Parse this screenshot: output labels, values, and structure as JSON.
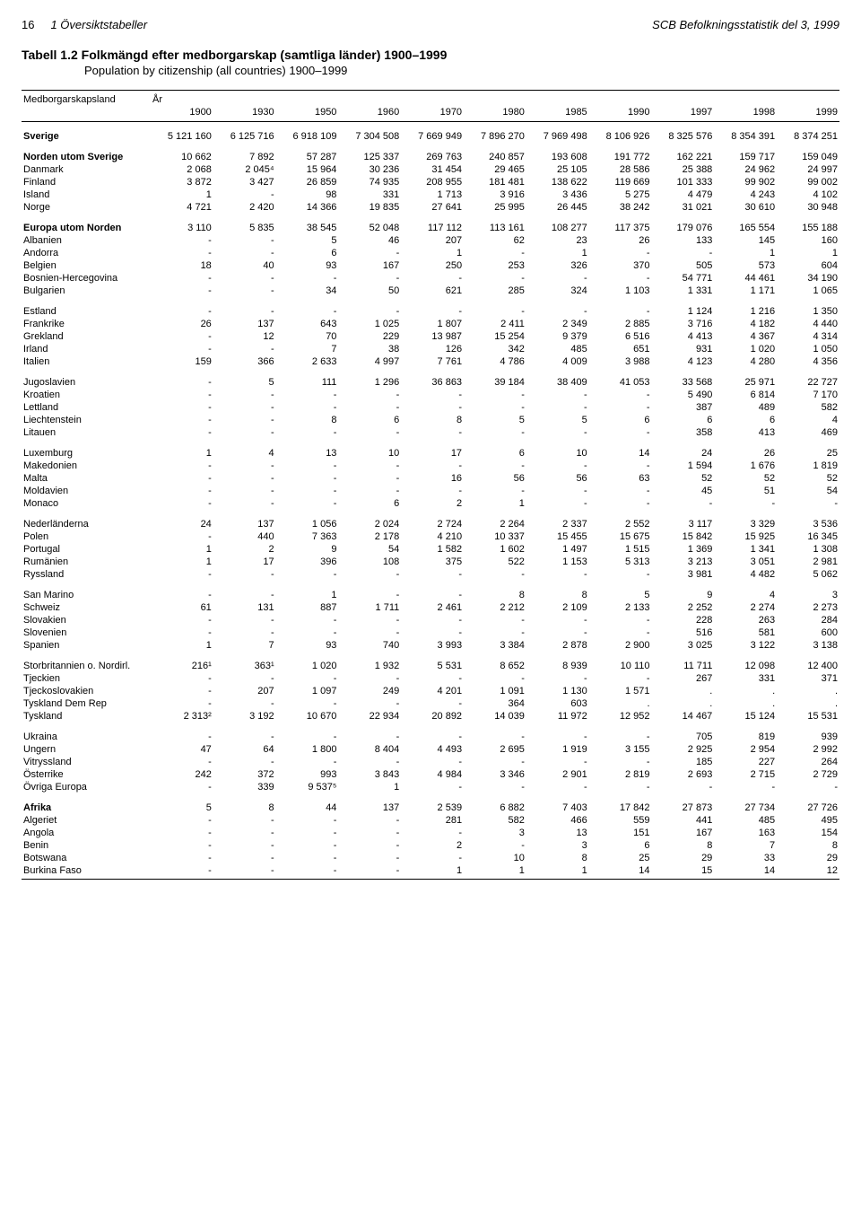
{
  "header": {
    "page_number": "16",
    "section": "1 Översiktstabeller",
    "publication": "SCB Befolkningsstatistik del 3, 1999"
  },
  "title": {
    "label": "Tabell 1.2",
    "sv": "Folkmängd efter medborgarskap (samtliga länder) 1900–1999",
    "en": "Population by citizenship (all countries) 1900–1999"
  },
  "table": {
    "row_header": "Medborgarskapsland",
    "year_label": "År",
    "years": [
      "1900",
      "1930",
      "1950",
      "1960",
      "1970",
      "1980",
      "1985",
      "1990",
      "1997",
      "1998",
      "1999"
    ],
    "rows": [
      {
        "label": "Sverige",
        "bold": true,
        "gap": true,
        "vals": [
          "5 121 160",
          "6 125 716",
          "6 918 109",
          "7 304 508",
          "7 669 949",
          "7 896 270",
          "7 969 498",
          "8 106 926",
          "8 325 576",
          "8 354 391",
          "8 374 251"
        ]
      },
      {
        "label": "Norden utom Sverige",
        "bold": true,
        "gap": true,
        "vals": [
          "10 662",
          "7 892",
          "57 287",
          "125 337",
          "269 763",
          "240 857",
          "193 608",
          "191 772",
          "162 221",
          "159 717",
          "159 049"
        ]
      },
      {
        "label": "Danmark",
        "vals": [
          "2 068",
          "2 045⁴",
          "15 964",
          "30 236",
          "31 454",
          "29 465",
          "25 105",
          "28 586",
          "25 388",
          "24 962",
          "24 997"
        ]
      },
      {
        "label": "Finland",
        "vals": [
          "3 872",
          "3 427",
          "26 859",
          "74 935",
          "208 955",
          "181 481",
          "138 622",
          "119 669",
          "101 333",
          "99 902",
          "99 002"
        ]
      },
      {
        "label": "Island",
        "vals": [
          "1",
          "-",
          "98",
          "331",
          "1 713",
          "3 916",
          "3 436",
          "5 275",
          "4 479",
          "4 243",
          "4 102"
        ]
      },
      {
        "label": "Norge",
        "vals": [
          "4 721",
          "2 420",
          "14 366",
          "19 835",
          "27 641",
          "25 995",
          "26 445",
          "38 242",
          "31 021",
          "30 610",
          "30 948"
        ]
      },
      {
        "label": "Europa utom Norden",
        "bold": true,
        "gap": true,
        "vals": [
          "3 110",
          "5 835",
          "38 545",
          "52 048",
          "117 112",
          "113 161",
          "108 277",
          "117 375",
          "179 076",
          "165 554",
          "155 188"
        ]
      },
      {
        "label": "Albanien",
        "vals": [
          "-",
          "-",
          "5",
          "46",
          "207",
          "62",
          "23",
          "26",
          "133",
          "145",
          "160"
        ]
      },
      {
        "label": "Andorra",
        "vals": [
          "-",
          "-",
          "6",
          "-",
          "1",
          "-",
          "1",
          "-",
          "-",
          "1",
          "1"
        ]
      },
      {
        "label": "Belgien",
        "vals": [
          "18",
          "40",
          "93",
          "167",
          "250",
          "253",
          "326",
          "370",
          "505",
          "573",
          "604"
        ]
      },
      {
        "label": "Bosnien-Hercegovina",
        "vals": [
          "-",
          "-",
          "-",
          "-",
          "-",
          "-",
          "-",
          "-",
          "54 771",
          "44 461",
          "34 190"
        ]
      },
      {
        "label": "Bulgarien",
        "vals": [
          "-",
          "-",
          "34",
          "50",
          "621",
          "285",
          "324",
          "1 103",
          "1 331",
          "1 171",
          "1 065"
        ]
      },
      {
        "label": "Estland",
        "gap": true,
        "vals": [
          "-",
          "-",
          "-",
          "-",
          "-",
          "-",
          "-",
          "-",
          "1 124",
          "1 216",
          "1 350"
        ]
      },
      {
        "label": "Frankrike",
        "vals": [
          "26",
          "137",
          "643",
          "1 025",
          "1 807",
          "2 411",
          "2 349",
          "2 885",
          "3 716",
          "4 182",
          "4 440"
        ]
      },
      {
        "label": "Grekland",
        "vals": [
          "-",
          "12",
          "70",
          "229",
          "13 987",
          "15 254",
          "9 379",
          "6 516",
          "4 413",
          "4 367",
          "4 314"
        ]
      },
      {
        "label": "Irland",
        "vals": [
          "-",
          "-",
          "7",
          "38",
          "126",
          "342",
          "485",
          "651",
          "931",
          "1 020",
          "1 050"
        ]
      },
      {
        "label": "Italien",
        "vals": [
          "159",
          "366",
          "2 633",
          "4 997",
          "7 761",
          "4 786",
          "4 009",
          "3 988",
          "4 123",
          "4 280",
          "4 356"
        ]
      },
      {
        "label": "Jugoslavien",
        "gap": true,
        "vals": [
          "-",
          "5",
          "111",
          "1 296",
          "36 863",
          "39 184",
          "38 409",
          "41 053",
          "33 568",
          "25 971",
          "22 727"
        ]
      },
      {
        "label": "Kroatien",
        "vals": [
          "-",
          "-",
          "-",
          "-",
          "-",
          "-",
          "-",
          "-",
          "5 490",
          "6 814",
          "7 170"
        ]
      },
      {
        "label": "Lettland",
        "vals": [
          "-",
          "-",
          "-",
          "-",
          "-",
          "-",
          "-",
          "-",
          "387",
          "489",
          "582"
        ]
      },
      {
        "label": "Liechtenstein",
        "vals": [
          "-",
          "-",
          "8",
          "6",
          "8",
          "5",
          "5",
          "6",
          "6",
          "6",
          "4"
        ]
      },
      {
        "label": "Litauen",
        "vals": [
          "-",
          "-",
          "-",
          "-",
          "-",
          "-",
          "-",
          "-",
          "358",
          "413",
          "469"
        ]
      },
      {
        "label": "Luxemburg",
        "gap": true,
        "vals": [
          "1",
          "4",
          "13",
          "10",
          "17",
          "6",
          "10",
          "14",
          "24",
          "26",
          "25"
        ]
      },
      {
        "label": "Makedonien",
        "vals": [
          "-",
          "-",
          "-",
          "-",
          "-",
          "-",
          "-",
          "-",
          "1 594",
          "1 676",
          "1 819"
        ]
      },
      {
        "label": "Malta",
        "vals": [
          "-",
          "-",
          "-",
          "-",
          "16",
          "56",
          "56",
          "63",
          "52",
          "52",
          "52"
        ]
      },
      {
        "label": "Moldavien",
        "vals": [
          "-",
          "-",
          "-",
          "-",
          "-",
          "-",
          "-",
          "-",
          "45",
          "51",
          "54"
        ]
      },
      {
        "label": "Monaco",
        "vals": [
          "-",
          "-",
          "-",
          "6",
          "2",
          "1",
          "-",
          "-",
          "-",
          "-",
          "-"
        ]
      },
      {
        "label": "Nederländerna",
        "gap": true,
        "vals": [
          "24",
          "137",
          "1 056",
          "2 024",
          "2 724",
          "2 264",
          "2 337",
          "2 552",
          "3 117",
          "3 329",
          "3 536"
        ]
      },
      {
        "label": "Polen",
        "vals": [
          "-",
          "440",
          "7 363",
          "2 178",
          "4 210",
          "10 337",
          "15 455",
          "15 675",
          "15 842",
          "15 925",
          "16 345"
        ]
      },
      {
        "label": "Portugal",
        "vals": [
          "1",
          "2",
          "9",
          "54",
          "1 582",
          "1 602",
          "1 497",
          "1 515",
          "1 369",
          "1 341",
          "1 308"
        ]
      },
      {
        "label": "Rumänien",
        "vals": [
          "1",
          "17",
          "396",
          "108",
          "375",
          "522",
          "1 153",
          "5 313",
          "3 213",
          "3 051",
          "2 981"
        ]
      },
      {
        "label": "Ryssland",
        "vals": [
          "-",
          "-",
          "-",
          "-",
          "-",
          "-",
          "-",
          "-",
          "3 981",
          "4 482",
          "5 062"
        ]
      },
      {
        "label": "San Marino",
        "gap": true,
        "vals": [
          "-",
          "-",
          "1",
          "-",
          "-",
          "8",
          "8",
          "5",
          "9",
          "4",
          "3"
        ]
      },
      {
        "label": "Schweiz",
        "vals": [
          "61",
          "131",
          "887",
          "1 711",
          "2 461",
          "2 212",
          "2 109",
          "2 133",
          "2 252",
          "2 274",
          "2 273"
        ]
      },
      {
        "label": "Slovakien",
        "vals": [
          "-",
          "-",
          "-",
          "-",
          "-",
          "-",
          "-",
          "-",
          "228",
          "263",
          "284"
        ]
      },
      {
        "label": "Slovenien",
        "vals": [
          "-",
          "-",
          "-",
          "-",
          "-",
          "-",
          "-",
          "-",
          "516",
          "581",
          "600"
        ]
      },
      {
        "label": "Spanien",
        "vals": [
          "1",
          "7",
          "93",
          "740",
          "3 993",
          "3 384",
          "2 878",
          "2 900",
          "3 025",
          "3 122",
          "3 138"
        ]
      },
      {
        "label": "Storbritannien o. Nordirl.",
        "gap": true,
        "vals": [
          "216¹",
          "363¹",
          "1 020",
          "1 932",
          "5 531",
          "8 652",
          "8 939",
          "10 110",
          "11 711",
          "12 098",
          "12 400"
        ]
      },
      {
        "label": "Tjeckien",
        "vals": [
          "-",
          "-",
          "-",
          "-",
          "-",
          "-",
          "-",
          "-",
          "267",
          "331",
          "371"
        ]
      },
      {
        "label": "Tjeckoslovakien",
        "vals": [
          "-",
          "207",
          "1 097",
          "249",
          "4 201",
          "1 091",
          "1 130",
          "1 571",
          ".",
          ".",
          "."
        ]
      },
      {
        "label": "Tyskland Dem Rep",
        "vals": [
          "-",
          "-",
          "-",
          "-",
          "-",
          "364",
          "603",
          ".",
          ".",
          ".",
          "."
        ]
      },
      {
        "label": "Tyskland",
        "vals": [
          "2 313²",
          "3 192",
          "10 670",
          "22 934",
          "20 892",
          "14 039",
          "11 972",
          "12 952",
          "14 467",
          "15 124",
          "15 531"
        ]
      },
      {
        "label": "Ukraina",
        "gap": true,
        "vals": [
          "-",
          "-",
          "-",
          "-",
          "-",
          "-",
          "-",
          "-",
          "705",
          "819",
          "939"
        ]
      },
      {
        "label": "Ungern",
        "vals": [
          "47",
          "64",
          "1 800",
          "8 404",
          "4 493",
          "2 695",
          "1 919",
          "3 155",
          "2 925",
          "2 954",
          "2 992"
        ]
      },
      {
        "label": "Vitryssland",
        "vals": [
          "-",
          "-",
          "-",
          "-",
          "-",
          "-",
          "-",
          "-",
          "185",
          "227",
          "264"
        ]
      },
      {
        "label": "Österrike",
        "vals": [
          "242",
          "372",
          "993",
          "3 843",
          "4 984",
          "3 346",
          "2 901",
          "2 819",
          "2 693",
          "2 715",
          "2 729"
        ]
      },
      {
        "label": "Övriga Europa",
        "vals": [
          "-",
          "339",
          "9 537⁵",
          "1",
          "-",
          "-",
          "-",
          "-",
          "-",
          "-",
          "-"
        ]
      },
      {
        "label": "Afrika",
        "bold": true,
        "gap": true,
        "vals": [
          "5",
          "8",
          "44",
          "137",
          "2 539",
          "6 882",
          "7 403",
          "17 842",
          "27 873",
          "27 734",
          "27 726"
        ]
      },
      {
        "label": "Algeriet",
        "vals": [
          "-",
          "-",
          "-",
          "-",
          "281",
          "582",
          "466",
          "559",
          "441",
          "485",
          "495"
        ]
      },
      {
        "label": "Angola",
        "vals": [
          "-",
          "-",
          "-",
          "-",
          "-",
          "3",
          "13",
          "151",
          "167",
          "163",
          "154"
        ]
      },
      {
        "label": "Benin",
        "vals": [
          "-",
          "-",
          "-",
          "-",
          "2",
          "-",
          "3",
          "6",
          "8",
          "7",
          "8"
        ]
      },
      {
        "label": "Botswana",
        "vals": [
          "-",
          "-",
          "-",
          "-",
          "-",
          "10",
          "8",
          "25",
          "29",
          "33",
          "29"
        ]
      },
      {
        "label": "Burkina Faso",
        "last": true,
        "vals": [
          "-",
          "-",
          "-",
          "-",
          "1",
          "1",
          "1",
          "14",
          "15",
          "14",
          "12"
        ]
      }
    ]
  }
}
